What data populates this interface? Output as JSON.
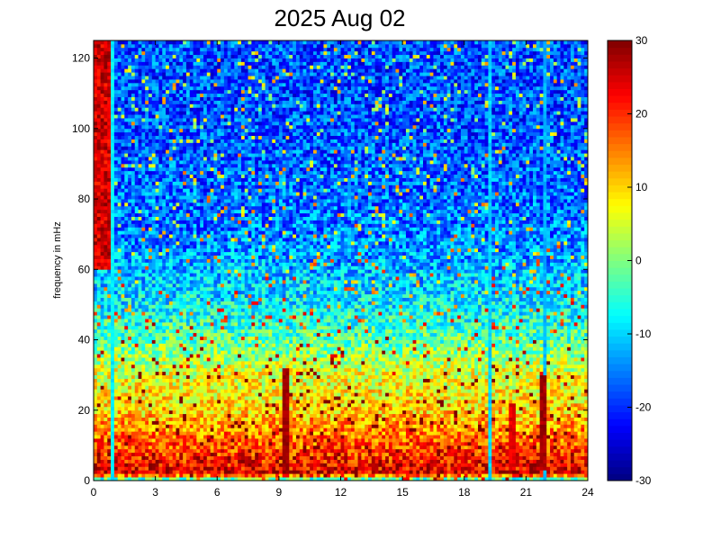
{
  "chart_data": {
    "type": "heatmap",
    "title": "2025 Aug 02",
    "xlabel": "",
    "ylabel": "frequency in mHz",
    "xlim": [
      0,
      24
    ],
    "ylim": [
      0,
      125
    ],
    "x_ticks": [
      "0",
      "3",
      "6",
      "9",
      "12",
      "15",
      "18",
      "21",
      "24"
    ],
    "y_ticks": [
      "0",
      "20",
      "40",
      "60",
      "80",
      "100",
      "120"
    ],
    "colorbar": {
      "min": -30,
      "max": 30,
      "ticks": [
        "-30",
        "-20",
        "-10",
        "0",
        "10",
        "20",
        "30"
      ],
      "colormap": "jet"
    },
    "power_profile": {
      "frequency_mHz": [
        0,
        2,
        5,
        10,
        20,
        30,
        40,
        50,
        60,
        70,
        80,
        90,
        100,
        110,
        125
      ],
      "level": [
        -12,
        25,
        22,
        18,
        10,
        6,
        -2,
        -8,
        -12,
        -15,
        -16,
        -17,
        -18,
        -18,
        -18
      ]
    },
    "features": [
      {
        "kind": "vertical-line",
        "hour": 19.3,
        "level": -10
      },
      {
        "kind": "vertical-line",
        "hour": 21.9,
        "level": -12
      },
      {
        "kind": "vertical-line",
        "hour": 0.9,
        "level": -8
      },
      {
        "kind": "burst",
        "hour": 9.3,
        "freq_max_mHz": 32,
        "level": 28
      },
      {
        "kind": "burst",
        "hour": 21.9,
        "freq_max_mHz": 30,
        "level": 28
      },
      {
        "kind": "burst",
        "hour": 20.3,
        "freq_max_mHz": 22,
        "level": 24
      },
      {
        "kind": "high-band",
        "hour_start": 0,
        "hour_end": 0.8,
        "freq_min_mHz": 60,
        "level": 30
      }
    ]
  }
}
